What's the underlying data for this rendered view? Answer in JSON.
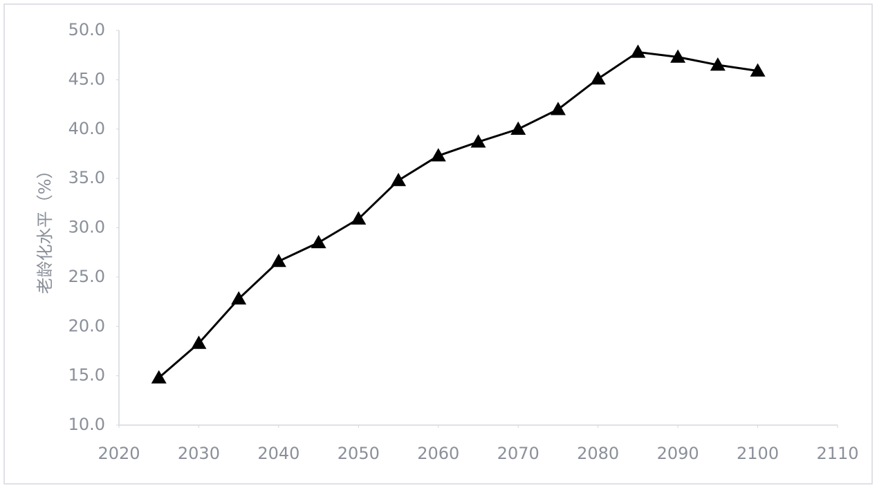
{
  "chart_data": {
    "type": "line",
    "y_label": "老龄化水平（%）",
    "x": [
      2025,
      2030,
      2035,
      2040,
      2045,
      2050,
      2055,
      2060,
      2065,
      2070,
      2075,
      2080,
      2085,
      2090,
      2095,
      2100
    ],
    "series": [
      {
        "color": "#000000",
        "marker": "triangle",
        "values": [
          14.8,
          18.3,
          22.8,
          26.6,
          28.5,
          30.9,
          34.8,
          37.3,
          38.7,
          40.0,
          42.0,
          45.1,
          47.8,
          47.3,
          46.5,
          45.9
        ]
      }
    ],
    "xlim": [
      2020,
      2110
    ],
    "xticks": [
      2020,
      2030,
      2040,
      2050,
      2060,
      2070,
      2080,
      2090,
      2100,
      2110
    ],
    "ylim": [
      10,
      50
    ],
    "yticks": [
      {
        "value": 10,
        "label": "10.0"
      },
      {
        "value": 15,
        "label": "15.0"
      },
      {
        "value": 20,
        "label": "20.0"
      },
      {
        "value": 25,
        "label": "25.0"
      },
      {
        "value": 30,
        "label": "30.0"
      },
      {
        "value": 35,
        "label": "35.0"
      },
      {
        "value": 40,
        "label": "40.0"
      },
      {
        "value": 45,
        "label": "45.0"
      },
      {
        "value": 50,
        "label": "50.0"
      }
    ],
    "grid": false
  }
}
